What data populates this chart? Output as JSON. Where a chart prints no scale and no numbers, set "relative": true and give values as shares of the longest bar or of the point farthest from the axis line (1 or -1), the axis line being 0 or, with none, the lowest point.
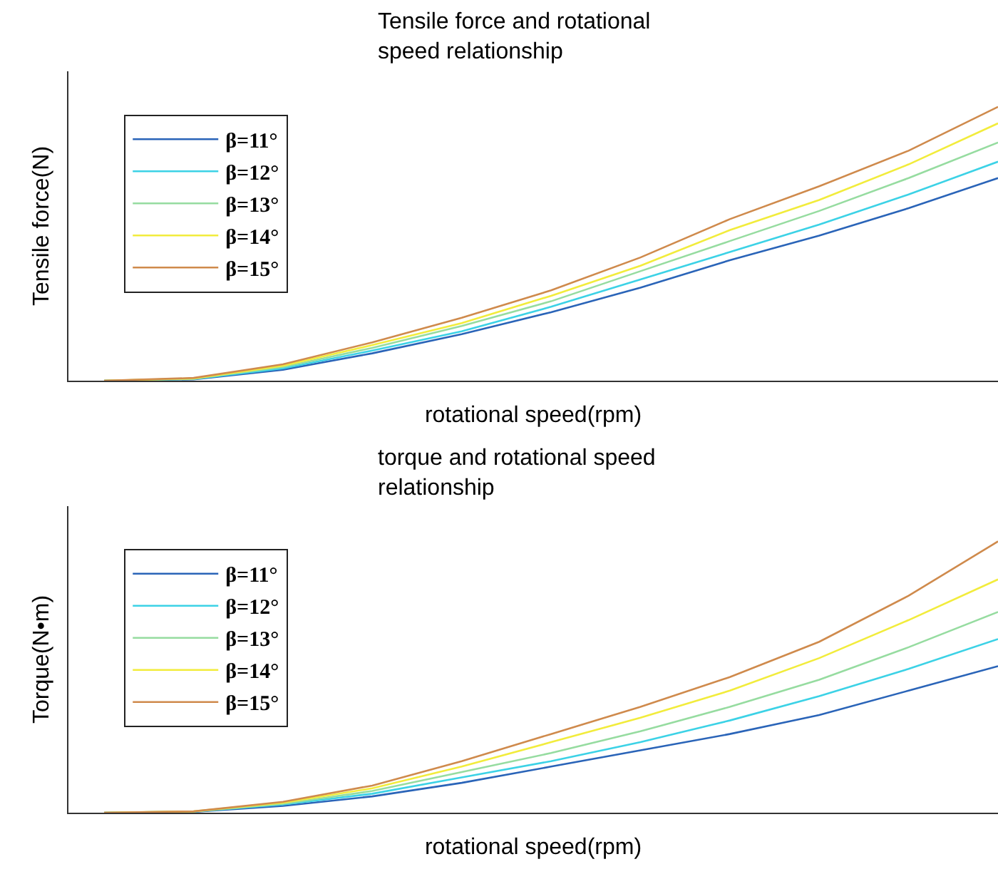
{
  "chart_data": [
    {
      "type": "line",
      "title": "Tensile force and rotational speed relationship",
      "xlabel": "rotational speed(rpm)",
      "ylabel": "Tensile force(N)",
      "relative": true,
      "categories": [
        null,
        null,
        null,
        null,
        null,
        null,
        null,
        null,
        null,
        null,
        null
      ],
      "legend": "top left",
      "marker": "none",
      "series": [
        {
          "name": "β=11°",
          "color": "#2a64b8",
          "values": [
            0,
            0.005,
            0.04,
            0.1,
            0.17,
            0.25,
            0.34,
            0.44,
            0.53,
            0.63,
            0.74
          ]
        },
        {
          "name": "β=12°",
          "color": "#3cd2e6",
          "values": [
            0,
            0.006,
            0.045,
            0.11,
            0.18,
            0.27,
            0.37,
            0.47,
            0.57,
            0.68,
            0.8
          ]
        },
        {
          "name": "β=13°",
          "color": "#96dca0",
          "values": [
            0,
            0.007,
            0.05,
            0.12,
            0.2,
            0.29,
            0.4,
            0.51,
            0.62,
            0.74,
            0.87
          ]
        },
        {
          "name": "β=14°",
          "color": "#f2ec3c",
          "values": [
            0,
            0.008,
            0.055,
            0.13,
            0.21,
            0.31,
            0.42,
            0.55,
            0.66,
            0.79,
            0.94
          ]
        },
        {
          "name": "β=15°",
          "color": "#cf8a4c",
          "values": [
            0,
            0.01,
            0.06,
            0.14,
            0.23,
            0.33,
            0.45,
            0.59,
            0.71,
            0.84,
            1
          ]
        }
      ]
    },
    {
      "type": "line",
      "title": "torque and rotational speed relationship",
      "xlabel": "rotational speed(rpm)",
      "ylabel": "Torque(N•m)",
      "relative": true,
      "categories": [
        null,
        null,
        null,
        null,
        null,
        null,
        null,
        null,
        null,
        null,
        null
      ],
      "legend": "top left",
      "marker": "none",
      "series": [
        {
          "name": "β=11°",
          "color": "#2a64b8",
          "values": [
            0,
            0.003,
            0.025,
            0.06,
            0.11,
            0.17,
            0.23,
            0.29,
            0.36,
            0.45,
            0.54
          ]
        },
        {
          "name": "β=12°",
          "color": "#3cd2e6",
          "values": [
            0,
            0.004,
            0.03,
            0.07,
            0.13,
            0.19,
            0.26,
            0.34,
            0.43,
            0.53,
            0.64
          ]
        },
        {
          "name": "β=13°",
          "color": "#96dca0",
          "values": [
            0,
            0.004,
            0.033,
            0.08,
            0.15,
            0.22,
            0.3,
            0.39,
            0.49,
            0.61,
            0.74
          ]
        },
        {
          "name": "β=14°",
          "color": "#f2ec3c",
          "values": [
            0,
            0.005,
            0.037,
            0.09,
            0.17,
            0.26,
            0.35,
            0.45,
            0.57,
            0.71,
            0.86
          ]
        },
        {
          "name": "β=15°",
          "color": "#cf8a4c",
          "values": [
            0,
            0.005,
            0.04,
            0.1,
            0.19,
            0.29,
            0.39,
            0.5,
            0.63,
            0.8,
            1
          ]
        }
      ]
    }
  ]
}
